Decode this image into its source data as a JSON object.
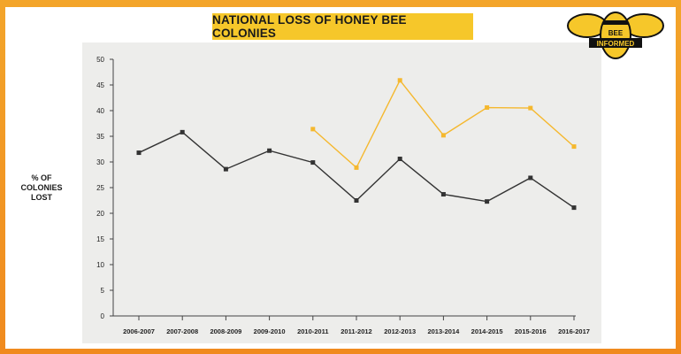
{
  "chart_data": {
    "type": "line",
    "title": "NATIONAL LOSS OF HONEY BEE COLONIES",
    "ylabel_lines": [
      "% OF",
      "COLONIES",
      "LOST"
    ],
    "categories": [
      "2006-2007",
      "2007-2008",
      "2008-2009",
      "2009-2010",
      "2010-2011",
      "2011-2012",
      "2012-2013",
      "2013-2014",
      "2014-2015",
      "2015-2016",
      "2016-2017"
    ],
    "y_ticks": [
      0,
      5,
      10,
      15,
      20,
      25,
      30,
      35,
      40,
      45,
      50
    ],
    "ylim": [
      0,
      50
    ],
    "grid": false,
    "series": [
      {
        "values": [
          31.8,
          35.8,
          28.6,
          32.2,
          29.9,
          22.5,
          30.6,
          23.7,
          22.3,
          26.9,
          21.1
        ],
        "color": "#333333",
        "marker": "square"
      },
      {
        "values": [
          null,
          null,
          null,
          null,
          36.4,
          28.9,
          45.9,
          35.2,
          40.6,
          40.5,
          33.0
        ],
        "color": "#f5b82e",
        "marker": "square"
      }
    ]
  },
  "logo": {
    "line1": "BEE",
    "line2": "INFORMED",
    "colors": {
      "yellow": "#f6c72a",
      "black": "#111111"
    }
  }
}
